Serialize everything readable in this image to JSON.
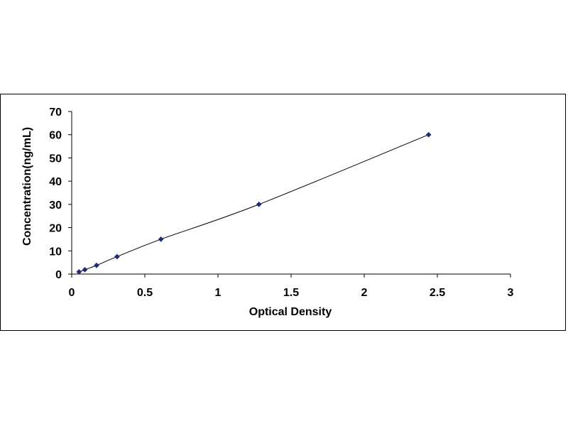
{
  "chart_data": {
    "type": "scatter",
    "title": "",
    "xlabel": "Optical Density",
    "ylabel": "Concentration(ng/mL)",
    "xlim": [
      0,
      3
    ],
    "ylim": [
      0,
      70
    ],
    "x_ticks": [
      0,
      0.5,
      1,
      1.5,
      2,
      2.5,
      3
    ],
    "x_tick_labels": [
      "0",
      "0.5",
      "1",
      "1.5",
      "2",
      "2.5",
      "3"
    ],
    "y_ticks": [
      0,
      10,
      20,
      30,
      40,
      50,
      60,
      70
    ],
    "y_tick_labels": [
      "0",
      "10",
      "20",
      "30",
      "40",
      "50",
      "60",
      "70"
    ],
    "grid": false,
    "legend": false,
    "series": [
      {
        "marker": "diamond",
        "color": "#1f2a78",
        "line_color": "#000000",
        "smooth_line": true,
        "points": [
          {
            "x": 0.05,
            "y": 0.94
          },
          {
            "x": 0.09,
            "y": 1.88
          },
          {
            "x": 0.17,
            "y": 3.75
          },
          {
            "x": 0.31,
            "y": 7.5
          },
          {
            "x": 0.61,
            "y": 15
          },
          {
            "x": 1.28,
            "y": 30
          },
          {
            "x": 2.44,
            "y": 60
          }
        ]
      }
    ]
  }
}
